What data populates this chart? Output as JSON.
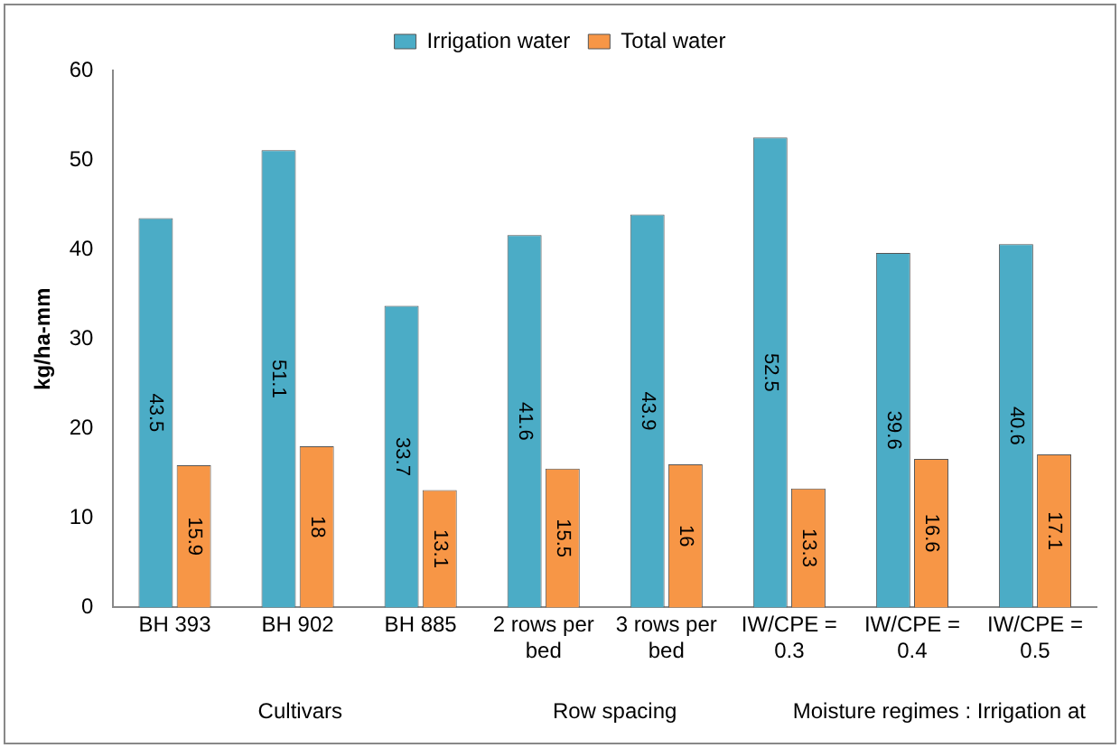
{
  "chart_data": {
    "type": "bar",
    "ylabel": "kg/ha-mm",
    "categories": [
      "BH 393",
      "BH 902",
      "BH 885",
      "2 rows per bed",
      "3 rows per bed",
      "IW/CPE = 0.3",
      "IW/CPE = 0.4",
      "IW/CPE = 0.5"
    ],
    "series": [
      {
        "name": "Irrigation water",
        "color": "#4bacc6",
        "values": [
          43.5,
          51.1,
          33.7,
          41.6,
          43.9,
          52.5,
          39.6,
          40.6
        ]
      },
      {
        "name": "Total water",
        "color": "#f79646",
        "values": [
          15.9,
          18,
          13.1,
          15.5,
          16,
          13.3,
          16.6,
          17.1
        ]
      }
    ],
    "ylim": [
      0,
      60
    ],
    "yticks": [
      0,
      10,
      20,
      30,
      40,
      50,
      60
    ],
    "grid": false,
    "legend": "top",
    "data_labels": true,
    "annotations": [
      "Cultivars",
      "Row spacing",
      "Moisture regimes : Irrigation at"
    ]
  }
}
